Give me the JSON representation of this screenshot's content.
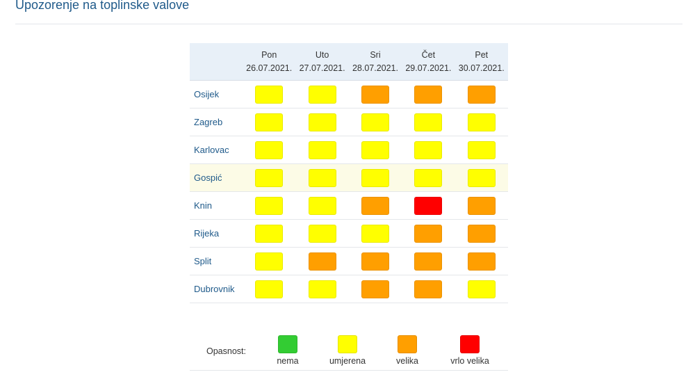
{
  "page": {
    "title": "Upozorenje na toplinske valove"
  },
  "levels": {
    "nema": "#33cc33",
    "umjerena": "#ffff00",
    "velika": "#ff9f00",
    "vrlo_velika": "#ff0000"
  },
  "table": {
    "days": [
      {
        "name": "Pon",
        "date": "26.07.2021."
      },
      {
        "name": "Uto",
        "date": "27.07.2021."
      },
      {
        "name": "Sri",
        "date": "28.07.2021."
      },
      {
        "name": "Čet",
        "date": "29.07.2021."
      },
      {
        "name": "Pet",
        "date": "30.07.2021."
      }
    ],
    "rows": [
      {
        "city": "Osijek",
        "levels": [
          "umjerena",
          "umjerena",
          "velika",
          "velika",
          "velika"
        ]
      },
      {
        "city": "Zagreb",
        "levels": [
          "umjerena",
          "umjerena",
          "umjerena",
          "umjerena",
          "umjerena"
        ]
      },
      {
        "city": "Karlovac",
        "levels": [
          "umjerena",
          "umjerena",
          "umjerena",
          "umjerena",
          "umjerena"
        ]
      },
      {
        "city": "Gospić",
        "levels": [
          "umjerena",
          "umjerena",
          "umjerena",
          "umjerena",
          "umjerena"
        ]
      },
      {
        "city": "Knin",
        "levels": [
          "umjerena",
          "umjerena",
          "velika",
          "vrlo_velika",
          "velika"
        ]
      },
      {
        "city": "Rijeka",
        "levels": [
          "umjerena",
          "umjerena",
          "umjerena",
          "velika",
          "velika"
        ]
      },
      {
        "city": "Split",
        "levels": [
          "umjerena",
          "velika",
          "velika",
          "velika",
          "velika"
        ]
      },
      {
        "city": "Dubrovnik",
        "levels": [
          "umjerena",
          "umjerena",
          "velika",
          "velika",
          "umjerena"
        ]
      }
    ]
  },
  "legend": {
    "title": "Opasnost:",
    "items": [
      {
        "key": "nema",
        "label": "nema"
      },
      {
        "key": "umjerena",
        "label": "umjerena"
      },
      {
        "key": "velika",
        "label": "velika"
      },
      {
        "key": "vrlo_velika",
        "label": "vrlo velika"
      }
    ]
  }
}
